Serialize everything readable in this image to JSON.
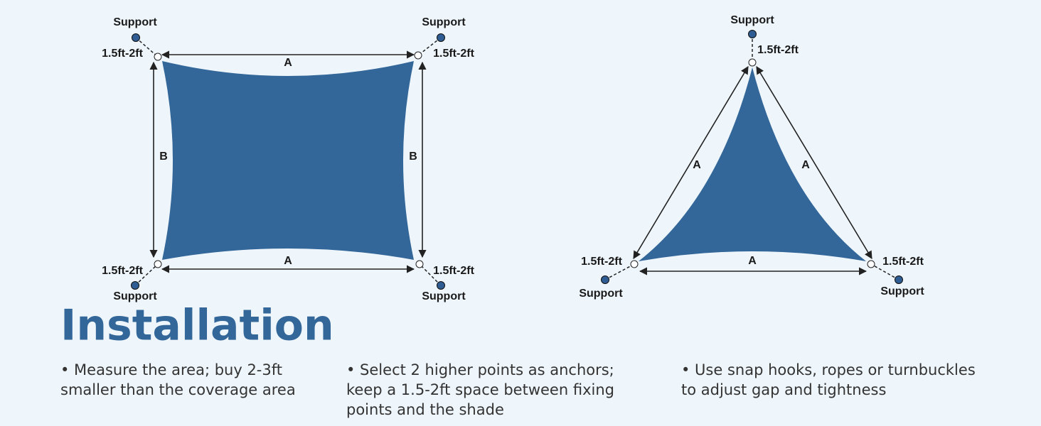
{
  "rectangle": {
    "corners": [
      {
        "support": "Support",
        "gap": "1.5ft-2ft"
      },
      {
        "support": "Support",
        "gap": "1.5ft-2ft"
      },
      {
        "support": "Support",
        "gap": "1.5ft-2ft"
      },
      {
        "support": "Support",
        "gap": "1.5ft-2ft"
      }
    ],
    "edges": [
      "A",
      "A",
      "B",
      "B"
    ]
  },
  "triangle": {
    "corners": [
      {
        "support": "Support",
        "gap": "1.5ft-2ft"
      },
      {
        "support": "Support",
        "gap": "1.5ft-2ft"
      },
      {
        "support": "Support",
        "gap": "1.5ft-2ft"
      }
    ],
    "edges": [
      "A",
      "A",
      "A"
    ]
  },
  "title": "Installation",
  "instructions": [
    {
      "lines": [
        "• Measure the area; buy 2-3ft",
        "smaller than the coverage area"
      ]
    },
    {
      "lines": [
        "• Select 2 higher points as anchors;",
        "keep a 1.5-2ft space between fixing",
        "points and the shade"
      ]
    },
    {
      "lines": [
        "• Use snap hooks, ropes or turnbuckles",
        "to adjust gap and tightness"
      ]
    }
  ]
}
